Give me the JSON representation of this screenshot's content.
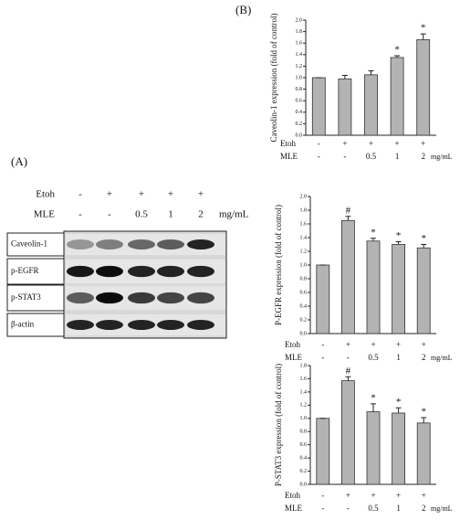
{
  "panel_a": "(A)",
  "panel_b": "(B)",
  "blot": {
    "treatments": {
      "rows": [
        {
          "name": "Etoh",
          "values": [
            "-",
            "+",
            "+",
            "+",
            "+"
          ]
        },
        {
          "name": "MLE",
          "values": [
            "-",
            "-",
            "0.5",
            "1",
            "2"
          ]
        }
      ],
      "unit": "mg/mL"
    },
    "bands": [
      "Caveolin-1",
      "p-EGFR",
      "p-STAT3",
      "β-actin"
    ]
  },
  "chart_data": [
    {
      "type": "bar",
      "y_label": "Caveolin-1 expression (fold of control)",
      "categories": [
        null,
        null,
        null,
        null,
        null
      ],
      "values": [
        1.0,
        0.98,
        1.05,
        1.35,
        1.66
      ],
      "errors": [
        0,
        0.06,
        0.07,
        0.03,
        0.1
      ],
      "annotations": [
        null,
        null,
        null,
        "*",
        "*"
      ],
      "color": "#b3b3b3",
      "ylim": [
        0,
        2.0
      ],
      "yticks": [
        {
          "value": 0,
          "label": "0.0"
        },
        0.2,
        0.4,
        0.6,
        0.8,
        {
          "value": 1,
          "label": "1.0"
        },
        1.2,
        1.4,
        1.6,
        1.8,
        {
          "value": 2,
          "label": "2.0"
        }
      ],
      "treatments": {
        "rows": [
          {
            "name": "Etoh",
            "values": [
              "-",
              "+",
              "+",
              "+",
              "+"
            ]
          },
          {
            "name": "MLE",
            "values": [
              "-",
              "-",
              "0.5",
              "1",
              "2"
            ]
          }
        ],
        "unit": "mg/mL"
      }
    },
    {
      "type": "bar",
      "y_label": "P-EGFR expression (fold of control)",
      "categories": [
        null,
        null,
        null,
        null,
        null
      ],
      "values": [
        1.0,
        1.65,
        1.35,
        1.3,
        1.25
      ],
      "errors": [
        0,
        0.06,
        0.04,
        0.04,
        0.05
      ],
      "annotations": [
        null,
        "#",
        "*",
        "*",
        "*"
      ],
      "color": "#b3b3b3",
      "ylim": [
        0,
        2.0
      ],
      "yticks": [
        {
          "value": 0,
          "label": "0.0"
        },
        0.2,
        0.4,
        0.6,
        0.8,
        {
          "value": 1,
          "label": "1.0"
        },
        1.2,
        1.4,
        1.6,
        1.8,
        {
          "value": 2,
          "label": "2.0"
        }
      ],
      "treatments": {
        "rows": [
          {
            "name": "Etoh",
            "values": [
              "-",
              "+",
              "+",
              "+",
              "+"
            ]
          },
          {
            "name": "MLE",
            "values": [
              "-",
              "-",
              "0.5",
              "1",
              "2"
            ]
          }
        ],
        "unit": "mg/mL"
      }
    },
    {
      "type": "bar",
      "y_label": "P-STAT3 expression (fold of control)",
      "categories": [
        null,
        null,
        null,
        null,
        null
      ],
      "values": [
        1.0,
        1.57,
        1.1,
        1.08,
        0.93
      ],
      "errors": [
        0,
        0.06,
        0.12,
        0.08,
        0.08
      ],
      "annotations": [
        null,
        "#",
        "*",
        "*",
        "*"
      ],
      "color": "#b3b3b3",
      "ylim": [
        0,
        1.8
      ],
      "yticks": [
        {
          "value": 0,
          "label": "0.0"
        },
        0.2,
        0.4,
        0.6,
        0.8,
        {
          "value": 1,
          "label": "1.0"
        },
        1.2,
        1.4,
        1.6,
        1.8
      ],
      "treatments": {
        "rows": [
          {
            "name": "Etoh",
            "values": [
              "-",
              "+",
              "+",
              "+",
              "+"
            ]
          },
          {
            "name": "MLE",
            "values": [
              "-",
              "-",
              "0.5",
              "1",
              "2"
            ]
          }
        ],
        "unit": "mg/mL"
      }
    }
  ]
}
